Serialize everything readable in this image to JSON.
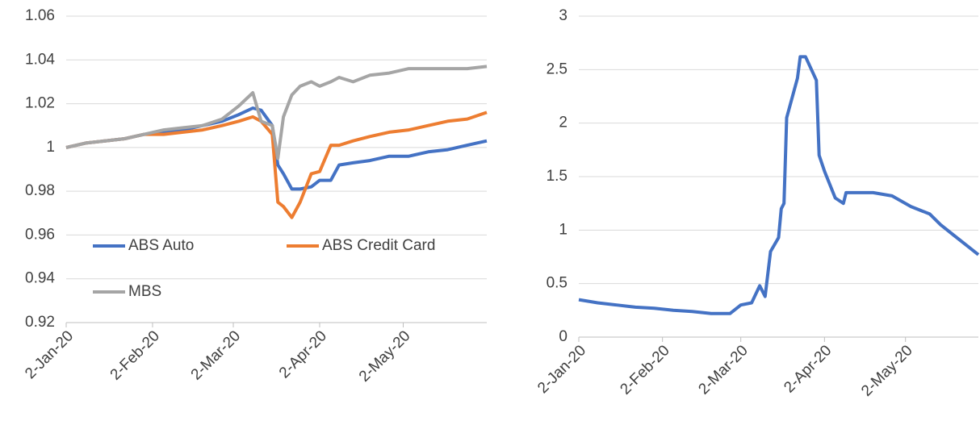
{
  "chart_data": [
    {
      "type": "line",
      "x": [
        "2020-01-02",
        "2020-01-09",
        "2020-01-16",
        "2020-01-23",
        "2020-01-30",
        "2020-02-06",
        "2020-02-13",
        "2020-02-20",
        "2020-02-27",
        "2020-03-04",
        "2020-03-09",
        "2020-03-12",
        "2020-03-16",
        "2020-03-18",
        "2020-03-20",
        "2020-03-23",
        "2020-03-26",
        "2020-03-30",
        "2020-04-02",
        "2020-04-06",
        "2020-04-09",
        "2020-04-14",
        "2020-04-20",
        "2020-04-27",
        "2020-05-04",
        "2020-05-11",
        "2020-05-18",
        "2020-05-25",
        "2020-06-01"
      ],
      "series": [
        {
          "name": "ABS Auto",
          "color": "#4472c4",
          "values": [
            1.0,
            1.002,
            1.003,
            1.004,
            1.006,
            1.007,
            1.008,
            1.01,
            1.012,
            1.015,
            1.018,
            1.017,
            1.01,
            0.992,
            0.988,
            0.981,
            0.981,
            0.982,
            0.985,
            0.985,
            0.992,
            0.993,
            0.994,
            0.996,
            0.996,
            0.998,
            0.999,
            1.001,
            1.003
          ]
        },
        {
          "name": "ABS Credit Card",
          "color": "#ed7d31",
          "values": [
            1.0,
            1.002,
            1.003,
            1.004,
            1.006,
            1.006,
            1.007,
            1.008,
            1.01,
            1.012,
            1.014,
            1.012,
            1.006,
            0.975,
            0.973,
            0.968,
            0.975,
            0.988,
            0.989,
            1.001,
            1.001,
            1.003,
            1.005,
            1.007,
            1.008,
            1.01,
            1.012,
            1.013,
            1.016
          ]
        },
        {
          "name": "MBS",
          "color": "#a5a5a5",
          "values": [
            1.0,
            1.002,
            1.003,
            1.004,
            1.006,
            1.008,
            1.009,
            1.01,
            1.013,
            1.019,
            1.025,
            1.012,
            1.01,
            0.995,
            1.014,
            1.024,
            1.028,
            1.03,
            1.028,
            1.03,
            1.032,
            1.03,
            1.033,
            1.034,
            1.036,
            1.036,
            1.036,
            1.036,
            1.037
          ]
        }
      ],
      "xlim": [
        "2020-01-02",
        "2020-06-01"
      ],
      "xticks": [
        {
          "value": "2020-01-02",
          "label": "2-Jan-20"
        },
        {
          "value": "2020-02-02",
          "label": "2-Feb-20"
        },
        {
          "value": "2020-03-02",
          "label": "2-Mar-20"
        },
        {
          "value": "2020-04-02",
          "label": "2-Apr-20"
        },
        {
          "value": "2020-05-02",
          "label": "2-May-20"
        }
      ],
      "ylim": [
        0.92,
        1.06
      ],
      "yticks": [
        0.92,
        0.94,
        0.96,
        0.98,
        1,
        1.02,
        1.04,
        1.06
      ],
      "grid": true,
      "legend": "lower-left"
    },
    {
      "type": "line",
      "x": [
        "2020-01-02",
        "2020-01-09",
        "2020-01-16",
        "2020-01-23",
        "2020-01-30",
        "2020-02-06",
        "2020-02-13",
        "2020-02-20",
        "2020-02-27",
        "2020-03-02",
        "2020-03-06",
        "2020-03-09",
        "2020-03-11",
        "2020-03-13",
        "2020-03-16",
        "2020-03-17",
        "2020-03-18",
        "2020-03-19",
        "2020-03-23",
        "2020-03-24",
        "2020-03-26",
        "2020-03-30",
        "2020-03-31",
        "2020-04-02",
        "2020-04-06",
        "2020-04-09",
        "2020-04-10",
        "2020-04-20",
        "2020-04-27",
        "2020-05-04",
        "2020-05-11",
        "2020-05-15",
        "2020-05-20",
        "2020-05-25",
        "2020-05-29"
      ],
      "series": [
        {
          "color": "#4472c4",
          "values": [
            0.35,
            0.32,
            0.3,
            0.28,
            0.27,
            0.25,
            0.24,
            0.22,
            0.22,
            0.3,
            0.32,
            0.48,
            0.38,
            0.8,
            0.93,
            1.2,
            1.25,
            2.05,
            2.42,
            2.62,
            2.62,
            2.4,
            1.7,
            1.55,
            1.3,
            1.25,
            1.35,
            1.35,
            1.32,
            1.22,
            1.15,
            1.05,
            0.95,
            0.85,
            0.77
          ]
        }
      ],
      "xlim": [
        "2020-01-02",
        "2020-05-29"
      ],
      "xticks": [
        {
          "value": "2020-01-02",
          "label": "2-Jan-20"
        },
        {
          "value": "2020-02-02",
          "label": "2-Feb-20"
        },
        {
          "value": "2020-03-02",
          "label": "2-Mar-20"
        },
        {
          "value": "2020-04-02",
          "label": "2-Apr-20"
        },
        {
          "value": "2020-05-02",
          "label": "2-May-20"
        }
      ],
      "ylim": [
        0,
        3
      ],
      "yticks": [
        0,
        0.5,
        1,
        1.5,
        2,
        2.5,
        3
      ],
      "grid": true
    }
  ]
}
